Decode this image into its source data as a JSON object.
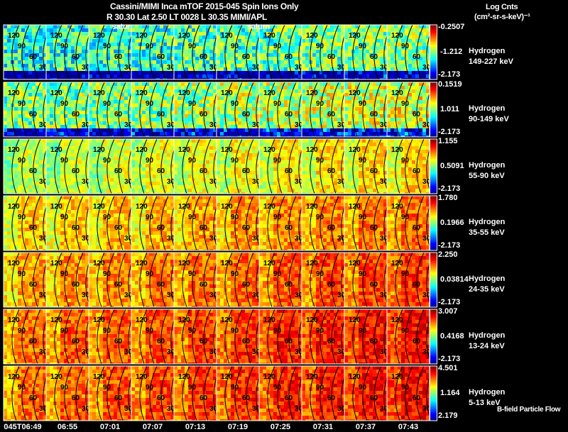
{
  "header": {
    "title": "Cassini/MIMI Inca mTOF  2015-045   Spin   Ions Only",
    "subtitle": "R         30.30 Lat 2.50 LT 0028 L          30.35  MIMI/APL",
    "overlay_labels": [
      "satur",
      "saturn"
    ]
  },
  "colorbar_title": "Log Cnts",
  "colorbar_unit": "(cm²-sr-s-keV)⁻¹",
  "footer_note": "B-field Particle Flow",
  "chart_data": {
    "type": "heatmap",
    "title": "Cassini/MIMI Inca mTOF 2015-045 Spin Ions Only",
    "time_ticks": [
      "045T06:49",
      "06:55",
      "07:01",
      "07:07",
      "07:13",
      "07:19",
      "07:25",
      "07:31",
      "07:37",
      "07:43"
    ],
    "contour_labels": [
      "120",
      "90",
      "60",
      "30"
    ],
    "colormap": [
      "#00008f",
      "#0000ff",
      "#0080ff",
      "#00ffff",
      "#80ff80",
      "#ffff00",
      "#ff8000",
      "#ff0000",
      "#800000"
    ],
    "rows": [
      {
        "species": "Hydrogen",
        "energy": "149-227 keV",
        "cb_max": "-0.2507",
        "cb_mid": "-1.212",
        "cb_min": "-2.173",
        "mean_level": 0.4
      },
      {
        "species": "Hydrogen",
        "energy": "90-149 keV",
        "cb_max": "0.1519",
        "cb_mid": "1.011",
        "cb_min": "-2.173",
        "mean_level": 0.48
      },
      {
        "species": "Hydrogen",
        "energy": "55-90 keV",
        "cb_max": "1.155",
        "cb_mid": "0.5091",
        "cb_min": "-2.173",
        "mean_level": 0.62
      },
      {
        "species": "Hydrogen",
        "energy": "35-55 keV",
        "cb_max": "1.780",
        "cb_mid": "0.1966",
        "cb_min": "-2.173",
        "mean_level": 0.72
      },
      {
        "species": "Hydrogen",
        "energy": "24-35 keV",
        "cb_max": "2.250",
        "cb_mid": "0.03814",
        "cb_min": "-2.173",
        "mean_level": 0.77
      },
      {
        "species": "Hydrogen",
        "energy": "13-24 keV",
        "cb_max": "3.007",
        "cb_mid": "0.4168",
        "cb_min": "-2.173",
        "mean_level": 0.82
      },
      {
        "species": "Hydrogen",
        "energy": "5-13 keV",
        "cb_max": "4.501",
        "cb_mid": "1.164",
        "cb_min": "2.179",
        "mean_level": 0.82
      }
    ]
  }
}
